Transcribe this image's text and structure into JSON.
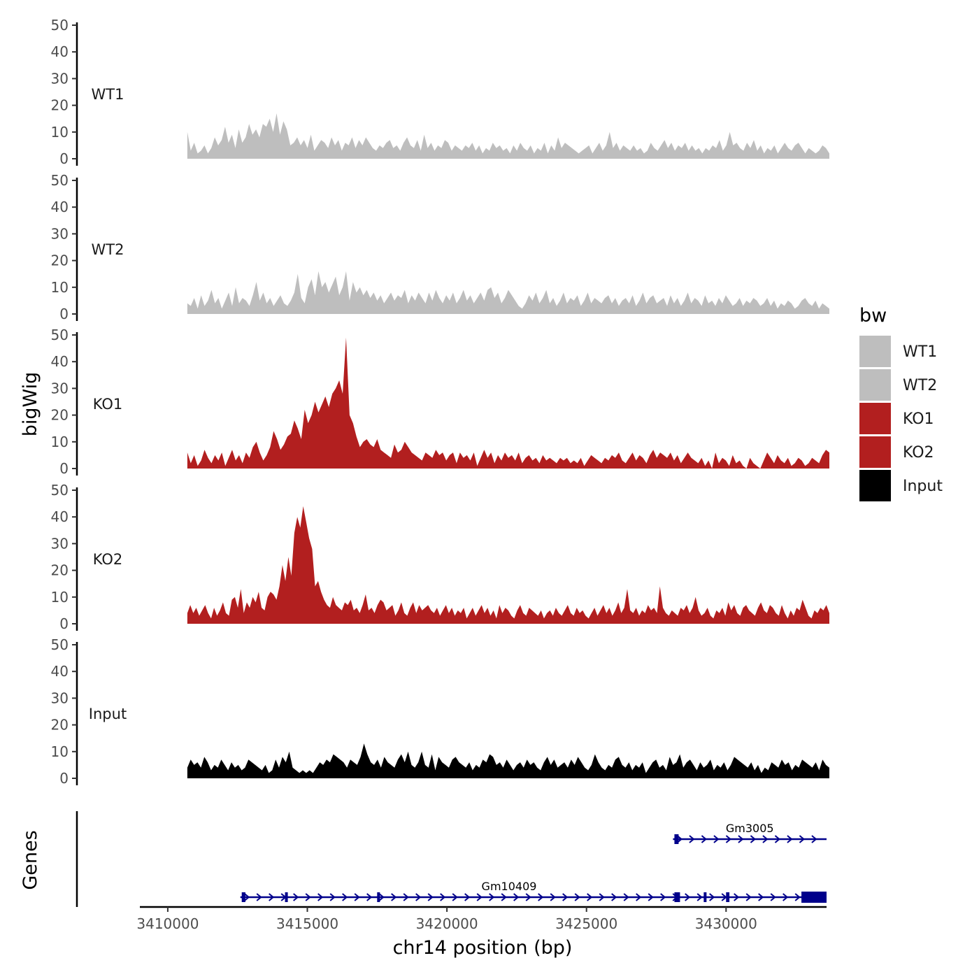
{
  "chart_data": {
    "type": "area",
    "y_axis_title": "bigWig",
    "genes_axis_title": "Genes",
    "x_axis_title": "chr14 position (bp)",
    "xlim": [
      3409000,
      3433600
    ],
    "x_ticks": [
      3410000,
      3415000,
      3420000,
      3425000,
      3430000
    ],
    "x_tick_labels": [
      "3410000",
      "3415000",
      "3420000",
      "3425000",
      "3430000"
    ],
    "ylim": [
      0,
      50
    ],
    "y_ticks": [
      0,
      10,
      20,
      30,
      40,
      50
    ],
    "y_tick_labels": [
      "0",
      "10",
      "20",
      "30",
      "40",
      "50"
    ],
    "x_start": 3410700,
    "x_end": 3433700,
    "legend": {
      "title": "bw",
      "position": "right",
      "entries": [
        {
          "label": "WT1",
          "color": "#bebebe"
        },
        {
          "label": "WT2",
          "color": "#bebebe"
        },
        {
          "label": "KO1",
          "color": "#b21f1f"
        },
        {
          "label": "KO2",
          "color": "#b21f1f"
        },
        {
          "label": "Input",
          "color": "#000000"
        }
      ]
    },
    "series": [
      {
        "name": "WT1",
        "color": "#bebebe",
        "values": [
          10,
          3,
          6,
          2,
          3,
          5,
          2,
          4,
          8,
          5,
          7,
          12,
          6,
          9,
          4,
          11,
          6,
          8,
          13,
          9,
          11,
          8,
          13,
          12,
          15,
          10,
          17,
          9,
          14,
          11,
          5,
          6,
          8,
          5,
          7,
          4,
          9,
          3,
          5,
          7,
          6,
          4,
          8,
          5,
          7,
          3,
          6,
          5,
          8,
          4,
          7,
          5,
          8,
          6,
          4,
          3,
          5,
          4,
          6,
          7,
          4,
          5,
          3,
          6,
          8,
          5,
          4,
          7,
          3,
          9,
          4,
          6,
          3,
          5,
          4,
          7,
          6,
          3,
          5,
          4,
          3,
          5,
          4,
          6,
          3,
          5,
          2,
          4,
          3,
          6,
          4,
          5,
          3,
          4,
          2,
          5,
          3,
          6,
          4,
          3,
          5,
          2,
          4,
          3,
          6,
          2,
          5,
          3,
          8,
          4,
          6,
          5,
          4,
          3,
          2,
          3,
          4,
          5,
          2,
          4,
          6,
          3,
          5,
          10,
          4,
          6,
          3,
          5,
          4,
          3,
          5,
          3,
          4,
          2,
          3,
          6,
          4,
          3,
          5,
          7,
          4,
          6,
          3,
          5,
          4,
          6,
          3,
          5,
          3,
          4,
          2,
          4,
          3,
          5,
          4,
          7,
          3,
          5,
          10,
          5,
          6,
          4,
          3,
          6,
          4,
          7,
          3,
          5,
          2,
          4,
          3,
          5,
          2,
          4,
          6,
          4,
          3,
          5,
          6,
          4,
          2,
          4,
          3,
          2,
          3,
          5,
          4,
          2
        ]
      },
      {
        "name": "WT2",
        "color": "#bebebe",
        "values": [
          4,
          3,
          6,
          2,
          7,
          3,
          5,
          9,
          4,
          6,
          2,
          5,
          8,
          3,
          10,
          4,
          6,
          5,
          3,
          7,
          12,
          5,
          8,
          4,
          6,
          3,
          5,
          7,
          4,
          3,
          5,
          8,
          15,
          6,
          4,
          10,
          13,
          7,
          16,
          10,
          12,
          8,
          11,
          14,
          7,
          10,
          16,
          5,
          12,
          8,
          10,
          7,
          9,
          6,
          8,
          5,
          7,
          4,
          6,
          8,
          5,
          7,
          6,
          9,
          4,
          7,
          5,
          8,
          6,
          4,
          8,
          5,
          9,
          6,
          4,
          7,
          5,
          8,
          4,
          6,
          9,
          5,
          7,
          4,
          6,
          8,
          5,
          9,
          10,
          6,
          8,
          4,
          6,
          9,
          7,
          5,
          3,
          2,
          4,
          7,
          5,
          8,
          4,
          6,
          9,
          4,
          6,
          3,
          5,
          8,
          4,
          6,
          5,
          7,
          3,
          5,
          8,
          4,
          6,
          5,
          4,
          6,
          7,
          4,
          6,
          3,
          5,
          6,
          4,
          7,
          3,
          5,
          8,
          4,
          6,
          7,
          4,
          5,
          6,
          3,
          7,
          4,
          6,
          3,
          5,
          8,
          4,
          6,
          5,
          3,
          7,
          4,
          5,
          3,
          6,
          4,
          7,
          5,
          3,
          4,
          6,
          3,
          5,
          4,
          6,
          5,
          3,
          4,
          6,
          3,
          5,
          2,
          4,
          3,
          5,
          4,
          2,
          3,
          5,
          6,
          4,
          3,
          5,
          2,
          4,
          3,
          2
        ]
      },
      {
        "name": "KO1",
        "color": "#b21f1f",
        "values": [
          6,
          2,
          5,
          1,
          3,
          7,
          4,
          2,
          5,
          3,
          6,
          1,
          4,
          7,
          3,
          5,
          2,
          6,
          4,
          8,
          10,
          6,
          3,
          5,
          8,
          14,
          11,
          7,
          9,
          12,
          13,
          18,
          15,
          11,
          22,
          17,
          20,
          25,
          21,
          24,
          27,
          23,
          28,
          30,
          33,
          28,
          49,
          20,
          17,
          12,
          8,
          10,
          11,
          9,
          8,
          11,
          7,
          6,
          5,
          4,
          9,
          6,
          7,
          10,
          8,
          6,
          5,
          4,
          3,
          6,
          5,
          4,
          7,
          5,
          6,
          3,
          5,
          6,
          2,
          6,
          4,
          5,
          3,
          6,
          1,
          4,
          7,
          4,
          6,
          2,
          5,
          3,
          6,
          4,
          5,
          3,
          6,
          2,
          4,
          5,
          3,
          4,
          2,
          5,
          3,
          4,
          3,
          2,
          4,
          3,
          4,
          2,
          3,
          2,
          4,
          1,
          3,
          5,
          4,
          3,
          2,
          4,
          3,
          5,
          4,
          6,
          3,
          2,
          4,
          6,
          3,
          5,
          4,
          2,
          5,
          7,
          4,
          6,
          5,
          4,
          6,
          3,
          5,
          2,
          4,
          6,
          4,
          3,
          2,
          4,
          1,
          3,
          0,
          6,
          2,
          4,
          3,
          1,
          5,
          2,
          3,
          1,
          0,
          4,
          2,
          1,
          0,
          3,
          6,
          4,
          2,
          5,
          3,
          2,
          4,
          1,
          2,
          4,
          3,
          1,
          2,
          4,
          3,
          2,
          5,
          7,
          6
        ]
      },
      {
        "name": "KO2",
        "color": "#b21f1f",
        "values": [
          4,
          7,
          4,
          6,
          3,
          5,
          7,
          4,
          2,
          6,
          3,
          5,
          8,
          4,
          3,
          9,
          10,
          6,
          13,
          4,
          8,
          6,
          10,
          8,
          12,
          6,
          5,
          10,
          12,
          11,
          9,
          14,
          22,
          16,
          25,
          18,
          34,
          40,
          36,
          44,
          38,
          32,
          28,
          14,
          16,
          12,
          9,
          7,
          6,
          10,
          7,
          6,
          5,
          8,
          7,
          9,
          5,
          6,
          4,
          7,
          11,
          5,
          6,
          4,
          7,
          9,
          8,
          5,
          6,
          7,
          3,
          5,
          8,
          4,
          3,
          6,
          8,
          4,
          7,
          5,
          6,
          7,
          5,
          4,
          6,
          3,
          5,
          7,
          4,
          6,
          3,
          5,
          4,
          6,
          2,
          4,
          6,
          3,
          5,
          7,
          4,
          6,
          3,
          5,
          2,
          7,
          4,
          6,
          5,
          3,
          2,
          5,
          7,
          4,
          3,
          6,
          5,
          4,
          3,
          5,
          2,
          4,
          5,
          3,
          6,
          4,
          3,
          5,
          7,
          4,
          3,
          6,
          4,
          5,
          3,
          2,
          4,
          6,
          3,
          5,
          7,
          4,
          6,
          3,
          5,
          8,
          4,
          6,
          13,
          5,
          4,
          6,
          3,
          5,
          4,
          7,
          5,
          6,
          4,
          14,
          6,
          4,
          3,
          5,
          4,
          3,
          6,
          5,
          7,
          4,
          6,
          10,
          5,
          3,
          4,
          6,
          3,
          2,
          5,
          4,
          6,
          3,
          8,
          5,
          7,
          4,
          3,
          6,
          7,
          5,
          4,
          3,
          6,
          8,
          5,
          4,
          7,
          6,
          4,
          3,
          7,
          4,
          2,
          5,
          3,
          6,
          5,
          9,
          6,
          3,
          2,
          5,
          4,
          6,
          5,
          7,
          4
        ]
      },
      {
        "name": "Input",
        "color": "#000000",
        "values": [
          4,
          7,
          5,
          6,
          4,
          8,
          6,
          3,
          5,
          4,
          7,
          5,
          3,
          6,
          4,
          5,
          3,
          4,
          7,
          6,
          5,
          4,
          3,
          5,
          2,
          3,
          7,
          4,
          8,
          6,
          10,
          4,
          3,
          2,
          3,
          2,
          3,
          2,
          4,
          6,
          5,
          7,
          6,
          9,
          8,
          7,
          6,
          4,
          7,
          6,
          5,
          8,
          13,
          9,
          6,
          5,
          7,
          4,
          8,
          6,
          5,
          4,
          7,
          9,
          6,
          10,
          5,
          4,
          6,
          10,
          5,
          4,
          9,
          3,
          8,
          6,
          5,
          4,
          7,
          8,
          6,
          5,
          4,
          6,
          3,
          5,
          4,
          7,
          6,
          9,
          8,
          5,
          6,
          4,
          7,
          5,
          3,
          5,
          6,
          4,
          7,
          5,
          6,
          4,
          3,
          6,
          8,
          5,
          7,
          4,
          5,
          6,
          4,
          7,
          5,
          8,
          6,
          4,
          3,
          5,
          9,
          6,
          4,
          3,
          5,
          4,
          7,
          8,
          5,
          4,
          6,
          3,
          5,
          4,
          6,
          2,
          4,
          6,
          7,
          4,
          5,
          3,
          8,
          5,
          6,
          9,
          4,
          6,
          7,
          5,
          3,
          6,
          4,
          5,
          7,
          3,
          5,
          4,
          6,
          3,
          5,
          8,
          7,
          6,
          5,
          4,
          6,
          3,
          5,
          2,
          4,
          3,
          6,
          5,
          4,
          7,
          5,
          6,
          3,
          5,
          4,
          7,
          6,
          5,
          4,
          6,
          3,
          7,
          5,
          4
        ]
      }
    ],
    "genes": [
      {
        "name": "Gm3005",
        "start": 3428100,
        "end": 3433600,
        "exons": [
          [
            3428150,
            3428300
          ]
        ],
        "strand": "+"
      },
      {
        "name": "Gm10409",
        "start": 3412600,
        "end": 3433600,
        "exons": [
          [
            3412650,
            3412780
          ],
          [
            3414200,
            3414300
          ],
          [
            3417500,
            3417580
          ],
          [
            3428150,
            3428350
          ],
          [
            3429200,
            3429280
          ],
          [
            3430000,
            3430120
          ],
          [
            3432700,
            3433600
          ]
        ],
        "strand": "+"
      }
    ]
  }
}
